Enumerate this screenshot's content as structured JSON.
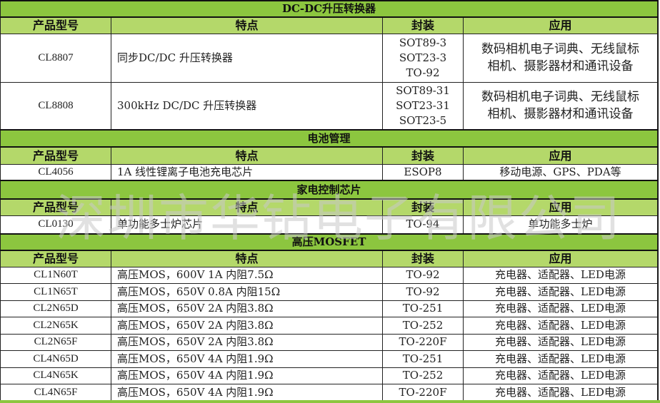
{
  "sections": [
    {
      "title": "DC-DC升压转换器",
      "headers": [
        "产品型号",
        "特点",
        "封装",
        "应用"
      ],
      "rows": [
        {
          "model": "CL8807",
          "feature": "同步DC/DC 升压转换器",
          "package": [
            "SOT89-3",
            "SOT23-3",
            "TO-92"
          ],
          "application": [
            "数码相机电子词典、无线鼠标",
            "相机、摄影器材和通讯设备"
          ]
        },
        {
          "model": "CL8808",
          "feature": "300kHz DC/DC 升压转换器",
          "package": [
            "SOT89-31",
            "SOT23-31",
            "SOT23-5"
          ],
          "application": [
            "数码相机电子词典、无线鼠标",
            "相机、摄影器材和通讯设备"
          ]
        }
      ]
    },
    {
      "title": "电池管理",
      "headers": [
        "产品型号",
        "特点",
        "封装",
        "应用"
      ],
      "rows": [
        {
          "model": "CL4056",
          "feature": "1A 线性锂离子电池充电芯片",
          "package": [
            "ESOP8"
          ],
          "application": [
            "移动电源、GPS、PDA等"
          ]
        }
      ]
    },
    {
      "title": "家电控制芯片",
      "headers": [
        "产品型号",
        "特点",
        "封装",
        "应用"
      ],
      "rows": [
        {
          "model": "CL0130",
          "feature": "单功能多士炉芯片",
          "package": [
            "TO-94"
          ],
          "application": [
            "单功能多士炉"
          ]
        }
      ]
    },
    {
      "title": "高压MOSFET",
      "headers": [
        "产品型号",
        "特点",
        "封装",
        "应用"
      ],
      "rows": [
        {
          "model": "CL1N60T",
          "feature": "高压MOS，600V 1A  内阻7.5Ω",
          "package": [
            "TO-92"
          ],
          "application": [
            "充电器、适配器、LED电源"
          ]
        },
        {
          "model": "CL1N65T",
          "feature": "高压MOS，650V 0.8A  内阻15Ω",
          "package": [
            "TO-92"
          ],
          "application": [
            "充电器、适配器、LED电源"
          ]
        },
        {
          "model": "CL2N65D",
          "feature": "高压MOS，650V 2A  内阻3.8Ω",
          "package": [
            "TO-251"
          ],
          "application": [
            "充电器、适配器、LED电源"
          ]
        },
        {
          "model": "CL2N65K",
          "feature": "高压MOS，650V 2A  内阻3.8Ω",
          "package": [
            "TO-252"
          ],
          "application": [
            "充电器、适配器、LED电源"
          ]
        },
        {
          "model": "CL2N65F",
          "feature": "高压MOS，650V 2A  内阻3.8Ω",
          "package": [
            "TO-220F"
          ],
          "application": [
            "充电器、适配器、LED电源"
          ]
        },
        {
          "model": "CL4N65D",
          "feature": "高压MOS，650V 4A  内阻1.9Ω",
          "package": [
            "TO-251"
          ],
          "application": [
            "充电器、适配器、LED电源"
          ]
        },
        {
          "model": "CL4N65K",
          "feature": "高压MOS，650V 4A  内阻1.9Ω",
          "package": [
            "TO-252"
          ],
          "application": [
            "充电器、适配器、LED电源"
          ]
        },
        {
          "model": "CL4N65F",
          "feature": "高压MOS，650V 4A  内阻1.9Ω",
          "package": [
            "TO-220F"
          ],
          "application": [
            "充电器、适配器、LED电源"
          ]
        }
      ]
    }
  ],
  "watermark": "深圳市华钻电子有限公司",
  "colors": {
    "title_bg": "#8cc63f",
    "header_bg": "#b4d86a",
    "border": "#222222"
  }
}
